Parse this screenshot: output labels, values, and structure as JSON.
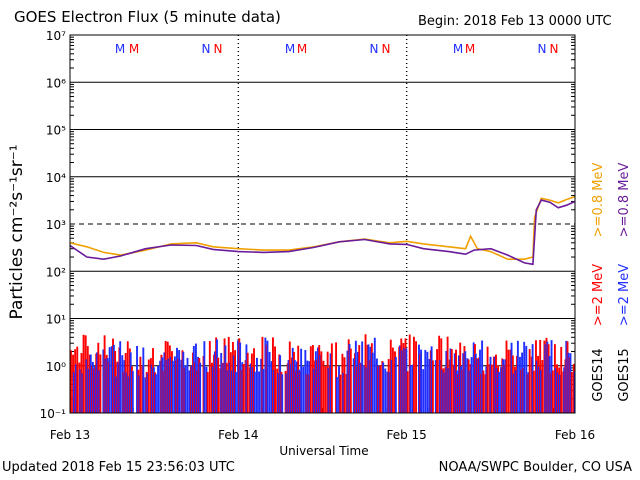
{
  "header": {
    "title": "GOES Electron Flux (5 minute data)",
    "begin": "Begin: 2018 Feb 13 0000 UTC"
  },
  "footer": {
    "updated": "Updated 2018 Feb 15 23:56:03 UTC",
    "credit": "NOAA/SWPC Boulder, CO USA"
  },
  "markers": [
    "M",
    "M",
    "N",
    "N",
    "M",
    "M",
    "N",
    "N",
    "M",
    "M",
    "N",
    "N"
  ],
  "legend": {
    "goes14": {
      "label": "GOES14",
      "high": ">=0.8 MeV",
      "low": ">=2 MeV"
    },
    "goes15": {
      "label": "GOES15",
      "high": ">=0.8 MeV",
      "low": ">=2 MeV"
    }
  },
  "colors": {
    "goes14_high": "#f0a000",
    "goes15_high": "#6a1b9a",
    "goes14_low": "#ff0000",
    "goes15_low": "#1f2fff",
    "marker_m_first": "#1f2fff",
    "marker_m_second": "#ff0000"
  },
  "chart_data": {
    "type": "line",
    "title": "GOES Electron Flux (5 minute data)",
    "xlabel": "Universal Time",
    "ylabel": "Particles cm⁻²s⁻¹sr⁻¹",
    "y_scale": "log",
    "ylim": [
      0.1,
      10000000
    ],
    "y_ticks": [
      "10⁻¹",
      "10⁰",
      "10¹",
      "10²",
      "10³",
      "10⁴",
      "10⁵",
      "10⁶",
      "10⁷"
    ],
    "x_ticks": [
      "Feb 13",
      "Feb 14",
      "Feb 15",
      "Feb 16"
    ],
    "xlim_days": [
      13,
      16
    ],
    "threshold": 1000,
    "grid": true,
    "series": [
      {
        "name": "GOES14 >=0.8 MeV",
        "color": "#f0a000",
        "x": [
          13.0,
          13.1,
          13.2,
          13.3,
          13.45,
          13.6,
          13.75,
          13.85,
          14.0,
          14.15,
          14.3,
          14.45,
          14.6,
          14.75,
          14.9,
          15.0,
          15.1,
          15.25,
          15.35,
          15.38,
          15.42,
          15.5,
          15.6,
          15.7,
          15.75,
          15.76,
          15.8,
          15.85,
          15.9,
          15.95,
          16.0
        ],
        "values": [
          400,
          330,
          250,
          220,
          280,
          380,
          400,
          330,
          300,
          280,
          280,
          330,
          420,
          480,
          400,
          430,
          380,
          330,
          300,
          550,
          300,
          260,
          180,
          180,
          200,
          1400,
          3500,
          3200,
          2800,
          3300,
          3800
        ]
      },
      {
        "name": "GOES15 >=0.8 MeV",
        "color": "#6a1b9a",
        "x": [
          13.0,
          13.1,
          13.2,
          13.3,
          13.45,
          13.6,
          13.75,
          13.85,
          14.0,
          14.15,
          14.3,
          14.45,
          14.6,
          14.75,
          14.9,
          15.0,
          15.1,
          15.25,
          15.35,
          15.4,
          15.5,
          15.6,
          15.7,
          15.75,
          15.77,
          15.8,
          15.85,
          15.9,
          15.95,
          16.0
        ],
        "values": [
          350,
          200,
          180,
          210,
          300,
          360,
          350,
          290,
          260,
          250,
          260,
          320,
          420,
          470,
          380,
          370,
          300,
          260,
          230,
          280,
          300,
          220,
          150,
          140,
          2000,
          3200,
          2900,
          2200,
          2500,
          3000
        ]
      },
      {
        "name": "GOES14 >=2 MeV",
        "color": "#ff0000",
        "x": [
          13.0,
          13.5,
          14.0,
          14.5,
          15.0,
          15.5,
          16.0
        ],
        "values": [
          1.2,
          1.0,
          1.1,
          1.0,
          1.2,
          1.0,
          1.1
        ]
      },
      {
        "name": "GOES15 >=2 MeV",
        "color": "#1f2fff",
        "x": [
          13.0,
          13.5,
          14.0,
          14.5,
          15.0,
          15.5,
          16.0
        ],
        "values": [
          1.0,
          0.9,
          1.0,
          0.9,
          1.0,
          0.9,
          1.0
        ]
      }
    ]
  }
}
